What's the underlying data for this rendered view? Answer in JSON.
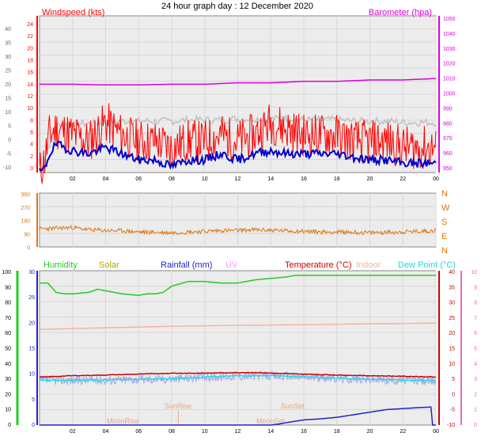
{
  "page": {
    "title": "24 hour graph day : 12 December 2020"
  },
  "colors": {
    "windspeed": "#ff0000",
    "windspeed_avg": "#0000cc",
    "gust_grey": "#c0c0c0",
    "barometer": "#dd00dd",
    "direction": "#dd7711",
    "humidity": "#22cc22",
    "solar": "#aaaa00",
    "rainfall": "#2222cc",
    "uv": "#ff99ff",
    "temperature": "#cc0000",
    "indoor": "#f4b59a",
    "dewpoint": "#22dddd",
    "apparent": "#a6a6ee",
    "sun_label": "#e8a880",
    "plot_bg": "#ececec",
    "grid": "#d8d8d8"
  },
  "legend": {
    "windspeed": "Windspeed (kts)",
    "barometer": "Barometer (hpa)",
    "humidity": "Humidity",
    "solar": "Solar",
    "rainfall": "Rainfall (mm)",
    "uv": "UV",
    "temperature": "Temperature (°C)",
    "indoor": "Indoor",
    "dewpoint": "Dew Point (°C)"
  },
  "annotations": {
    "sunrise": "SunRise",
    "sunset": "SunSet",
    "moonrise": "MoonRise",
    "moonset": "MoonSet"
  },
  "chart_data": [
    {
      "type": "line",
      "x_ticks": [
        "02",
        "04",
        "06",
        "08",
        "10",
        "12",
        "14",
        "16",
        "18",
        "20",
        "22",
        "00"
      ],
      "x_range_hours": [
        0,
        24
      ],
      "left_axis": {
        "label": "Windspeed (kts)",
        "ticks": [
          "24",
          "22",
          "20",
          "18",
          "16",
          "14",
          "12",
          "10",
          "8",
          "6",
          "4",
          "2",
          "0"
        ],
        "range": [
          0,
          25
        ]
      },
      "left_outer_axis": {
        "ticks": [
          "40",
          "35",
          "30",
          "25",
          "20",
          "15",
          "10",
          "5",
          "0",
          "-5",
          "-10"
        ],
        "range": [
          -12.5,
          40
        ]
      },
      "right_axis": {
        "label": "Barometer (hpa)",
        "ticks": [
          "1050",
          "1040",
          "1030",
          "1020",
          "1010",
          "1000",
          "990",
          "980",
          "970",
          "960",
          "950"
        ],
        "range": [
          945,
          1055
        ]
      },
      "series": [
        {
          "name": "Windspeed (kts)",
          "x": [
            0,
            0.3,
            0.6,
            1,
            2,
            3,
            4,
            5,
            6,
            7,
            8,
            9,
            10,
            11,
            12,
            13,
            14,
            15,
            16,
            17,
            18,
            19,
            20,
            21,
            22,
            23,
            24
          ],
          "y": [
            0,
            2,
            6,
            7,
            6,
            5,
            8,
            6,
            5,
            5,
            4,
            5,
            5,
            6,
            5,
            6,
            8,
            7,
            6,
            6,
            6,
            5,
            5,
            5,
            4,
            4,
            4
          ]
        },
        {
          "name": "avg",
          "x": [
            0,
            0.3,
            0.6,
            1,
            2,
            3,
            4,
            5,
            6,
            7,
            8,
            9,
            10,
            11,
            12,
            13,
            14,
            15,
            16,
            17,
            18,
            19,
            20,
            21,
            22,
            23,
            24
          ],
          "y": [
            0,
            0.5,
            3,
            4.5,
            3.5,
            3,
            4,
            3,
            2,
            2,
            1,
            2,
            2,
            3,
            2,
            3,
            3.5,
            3,
            3,
            3,
            3,
            2.5,
            2,
            2,
            1.5,
            1.5,
            1.5
          ]
        },
        {
          "name": "gust",
          "x": [
            0,
            1,
            2,
            3,
            4,
            5,
            6,
            7,
            8,
            9,
            10,
            11,
            12,
            13,
            14,
            15,
            16,
            17,
            18,
            19,
            20,
            21,
            22,
            23,
            24
          ],
          "y": [
            0,
            7.5,
            7.8,
            7.8,
            8,
            8.2,
            8.2,
            8.2,
            8.2,
            8.4,
            8.4,
            8.4,
            8.6,
            8.6,
            8.6,
            8.6,
            8.4,
            8.4,
            8.4,
            8.2,
            8.2,
            8.2,
            8,
            8,
            8
          ]
        },
        {
          "name": "Barometer (hpa)",
          "x": [
            0,
            2,
            4,
            6,
            8,
            10,
            12,
            14,
            16,
            18,
            20,
            22,
            24
          ],
          "y": [
            1007,
            1007,
            1006.5,
            1006.5,
            1007,
            1007,
            1008,
            1008,
            1009,
            1009,
            1010,
            1010,
            1011
          ]
        }
      ]
    },
    {
      "type": "line",
      "x_ticks": [
        "02",
        "04",
        "06",
        "08",
        "10",
        "12",
        "14",
        "16",
        "18",
        "20",
        "22",
        "00"
      ],
      "x_range_hours": [
        0,
        24
      ],
      "left_axis": {
        "ticks": [
          "360",
          "270",
          "180",
          "90",
          "0"
        ],
        "range": [
          0,
          360
        ]
      },
      "right_axis": {
        "ticks": [
          "N",
          "W",
          "S",
          "E",
          "N"
        ]
      },
      "series": [
        {
          "name": "Wind direction",
          "x": [
            0,
            1,
            2,
            3,
            4,
            5,
            6,
            7,
            8,
            9,
            10,
            11,
            12,
            13,
            14,
            15,
            16,
            17,
            18,
            19,
            20,
            21,
            22,
            23,
            24
          ],
          "y": [
            120,
            125,
            130,
            115,
            110,
            108,
            100,
            98,
            95,
            100,
            105,
            110,
            110,
            115,
            112,
            108,
            105,
            100,
            100,
            98,
            95,
            98,
            100,
            105,
            110
          ]
        }
      ]
    },
    {
      "type": "line",
      "x_ticks": [
        "02",
        "04",
        "06",
        "08",
        "10",
        "12",
        "14",
        "16",
        "18",
        "20",
        "22",
        "00"
      ],
      "x_range_hours": [
        0,
        24
      ],
      "humidity_axis": {
        "ticks": [
          "100",
          "90",
          "80",
          "70",
          "60",
          "50",
          "40",
          "30",
          "20",
          "10",
          "0"
        ],
        "range": [
          0,
          100
        ]
      },
      "rain_axis": {
        "ticks": [
          "30",
          "25",
          "20",
          "15",
          "10",
          "5",
          "0"
        ],
        "range": [
          0,
          30
        ]
      },
      "temperature_axis": {
        "ticks": [
          "40",
          "35",
          "30",
          "25",
          "20",
          "15",
          "10",
          "5",
          "0",
          "-5",
          "-10"
        ],
        "range": [
          -10,
          40
        ]
      },
      "uv_axis": {
        "ticks": [
          "10",
          "9",
          "8",
          "7",
          "6",
          "5",
          "4",
          "3",
          "2",
          "1",
          "0"
        ],
        "range": [
          0,
          10
        ]
      },
      "series": [
        {
          "name": "Humidity",
          "x": [
            0,
            0.5,
            1,
            1.5,
            2,
            3,
            3.5,
            4,
            5,
            6,
            6.5,
            7,
            7.5,
            8,
            9,
            10,
            11,
            12,
            13,
            14,
            15,
            15.5,
            16,
            17,
            18,
            19,
            20,
            21,
            22,
            23,
            24
          ],
          "y": [
            92,
            92,
            86,
            85,
            85,
            86,
            88,
            87,
            85,
            84,
            85,
            85,
            86,
            90,
            93,
            93,
            92,
            92,
            94,
            95,
            96,
            97,
            97,
            97,
            97,
            97,
            97,
            97,
            97,
            97,
            97
          ]
        },
        {
          "name": "Rainfall (mm)",
          "x": [
            0,
            13,
            14,
            14.5,
            15,
            16,
            17,
            18,
            19,
            20,
            21,
            22,
            23,
            23.7,
            23.8,
            24
          ],
          "y": [
            0,
            0,
            0,
            0.2,
            0.5,
            1,
            1.2,
            1.5,
            2,
            2.5,
            3,
            3.2,
            3.4,
            3.5,
            0,
            0
          ]
        },
        {
          "name": "Temperature (°C)",
          "x": [
            0,
            2,
            4,
            6,
            8,
            10,
            12,
            13,
            14,
            16,
            18,
            20,
            22,
            24
          ],
          "y": [
            5.5,
            6,
            6.2,
            6.5,
            6.8,
            6.8,
            7,
            7,
            6.8,
            6.5,
            6.2,
            6,
            5.8,
            5.6
          ]
        },
        {
          "name": "Indoor",
          "x": [
            0,
            4,
            8,
            12,
            16,
            20,
            24
          ],
          "y": [
            21,
            21.5,
            22,
            22.3,
            22.5,
            22.8,
            23
          ]
        },
        {
          "name": "Dew Point (°C)",
          "x": [
            0,
            2,
            4,
            6,
            8,
            10,
            12,
            14,
            16,
            18,
            20,
            22,
            24
          ],
          "y": [
            4.5,
            4.5,
            4.6,
            4.8,
            5,
            5.5,
            6,
            6,
            5.6,
            5.2,
            4.8,
            4.5,
            4.3
          ]
        }
      ]
    }
  ]
}
